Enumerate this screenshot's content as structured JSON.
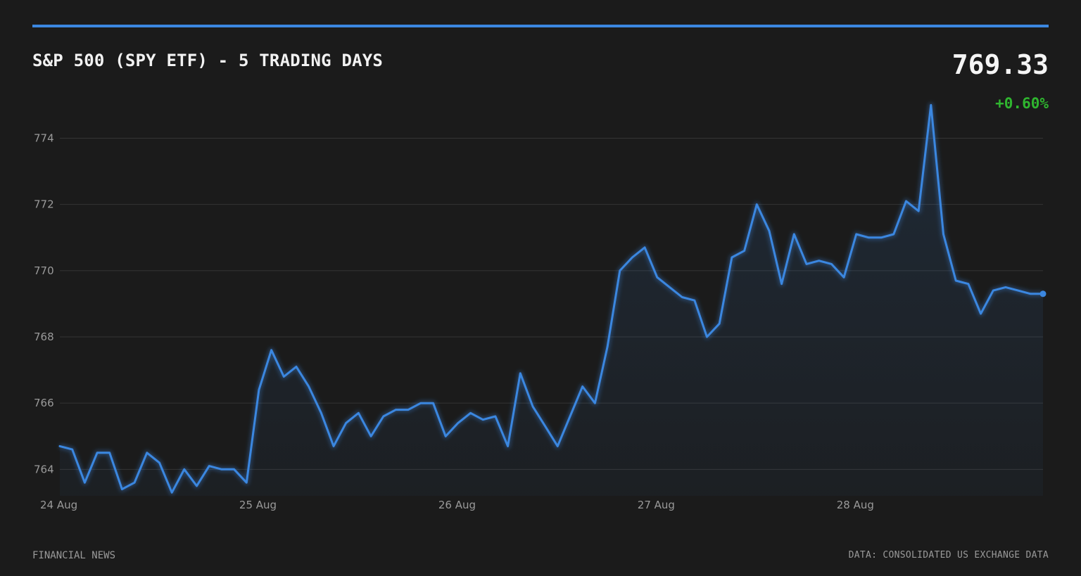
{
  "header": {
    "title": "S&P 500 (SPY ETF) - 5 TRADING DAYS",
    "price": "769.33",
    "change": "+0.60%"
  },
  "footer": {
    "source_left": "FINANCIAL NEWS",
    "source_right": "DATA: CONSOLIDATED US EXCHANGE DATA"
  },
  "colors": {
    "accent": "#3b87e0",
    "positive": "#2fb52f",
    "background": "#1b1b1b"
  },
  "chart_data": {
    "type": "area",
    "title": "S&P 500 (SPY ETF) - 5 TRADING DAYS",
    "xlabel": "",
    "ylabel": "",
    "grid": true,
    "legend": "none",
    "ylim": [
      763.2,
      775.2
    ],
    "yticks": [
      764,
      766,
      768,
      770,
      772,
      774
    ],
    "x_ticks": [
      "24 Aug",
      "25 Aug",
      "26 Aug",
      "27 Aug",
      "28 Aug"
    ],
    "series": [
      {
        "values": [
          764.7,
          764.6,
          763.6,
          764.5,
          764.5,
          763.4,
          763.6,
          764.5,
          764.2,
          763.3,
          764.0,
          763.5,
          764.1,
          764.0,
          764.0,
          763.6,
          766.4,
          767.6,
          766.8,
          767.1,
          766.5,
          765.7,
          764.7,
          765.4,
          765.7,
          765.0,
          765.6,
          765.8,
          765.8,
          766.0,
          766.0,
          765.0,
          765.4,
          765.7,
          765.5,
          765.6,
          764.7,
          766.9,
          765.9,
          765.3,
          764.7,
          765.6,
          766.5,
          766.0,
          767.7,
          770.0,
          770.4,
          770.7,
          769.8,
          769.5,
          769.2,
          769.1,
          768.0,
          768.4,
          770.4,
          770.6,
          772.0,
          771.2,
          769.6,
          771.1,
          770.2,
          770.3,
          770.2,
          769.8,
          771.1,
          771.0,
          771.0,
          771.1,
          772.1,
          771.8,
          775.0,
          771.1,
          769.7,
          769.6,
          768.7,
          769.4,
          769.5,
          769.4,
          769.3,
          769.3
        ]
      }
    ]
  }
}
